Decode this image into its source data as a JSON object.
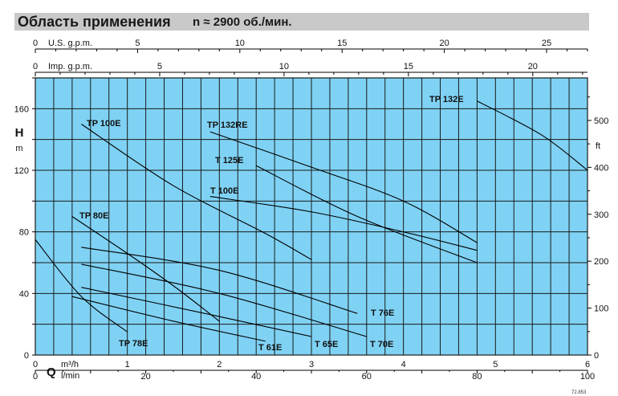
{
  "header": {
    "title": "Область применения",
    "speed": "n ≈ 2900 об./мин."
  },
  "figure_code": "72.853",
  "colors": {
    "plot_bg": "#7fd2f4",
    "grid": "#1a1a1a",
    "curve": "#000000",
    "title_bg": "#c9c9c9"
  },
  "chart_data": {
    "type": "line",
    "grid": true,
    "axes": {
      "usgpm": {
        "label": "U.S. g.p.m.",
        "range": [
          0,
          27
        ],
        "ticks": [
          0,
          5,
          10,
          15,
          20,
          25
        ]
      },
      "impgpm": {
        "label": "Imp. g.p.m.",
        "range": [
          0,
          22.2
        ],
        "ticks": [
          0,
          5,
          10,
          15,
          20
        ]
      },
      "q_m3h": {
        "name": "Q",
        "label": "m³/h",
        "range": [
          0,
          6
        ],
        "ticks": [
          0,
          1,
          2,
          3,
          4,
          5,
          6
        ]
      },
      "q_lmin": {
        "label": "l/min",
        "range": [
          0,
          100
        ],
        "ticks": [
          0,
          20,
          40,
          60,
          80,
          100
        ]
      },
      "h_m": {
        "name": "H",
        "label": "m",
        "range": [
          0,
          180
        ],
        "ticks": [
          0,
          40,
          80,
          120,
          160
        ]
      },
      "h_ft": {
        "label": "ft",
        "range": [
          0,
          590.6
        ],
        "ticks": [
          0,
          100,
          200,
          300,
          400,
          500
        ]
      }
    },
    "series": [
      {
        "name": "TP 100E",
        "x": [
          0.5,
          1.5,
          2.5,
          3.0
        ],
        "y": [
          150,
          110,
          79,
          62
        ]
      },
      {
        "name": "TP 132RE",
        "x": [
          1.9,
          3.0,
          4.0,
          4.8
        ],
        "y": [
          145,
          122,
          100,
          73
        ]
      },
      {
        "name": "T 125E",
        "x": [
          2.4,
          3.5,
          4.8
        ],
        "y": [
          123,
          90,
          60
        ]
      },
      {
        "name": "T 100E",
        "x": [
          1.9,
          3.0,
          4.0,
          4.8
        ],
        "y": [
          103,
          93,
          80,
          68
        ]
      },
      {
        "name": "TP 132E",
        "x": [
          4.8,
          5.5,
          6.0
        ],
        "y": [
          165,
          143,
          120
        ]
      },
      {
        "name": "TP 80E",
        "x": [
          0.4,
          1.0,
          1.5,
          2.0
        ],
        "y": [
          90,
          66,
          45,
          22
        ]
      },
      {
        "name": "TP 78E",
        "x": [
          0.0,
          0.5,
          1.0
        ],
        "y": [
          75,
          38,
          15
        ]
      },
      {
        "name": "T 76E",
        "x": [
          0.5,
          2.0,
          3.5
        ],
        "y": [
          70,
          55,
          27
        ]
      },
      {
        "name": "T 70E",
        "x": [
          0.5,
          2.0,
          3.6
        ],
        "y": [
          59,
          40,
          12
        ]
      },
      {
        "name": "T 65E",
        "x": [
          0.5,
          2.0,
          3.0
        ],
        "y": [
          44,
          25,
          12
        ]
      },
      {
        "name": "T 61E",
        "x": [
          0.4,
          1.5,
          2.5
        ],
        "y": [
          38,
          22,
          9
        ]
      }
    ]
  }
}
